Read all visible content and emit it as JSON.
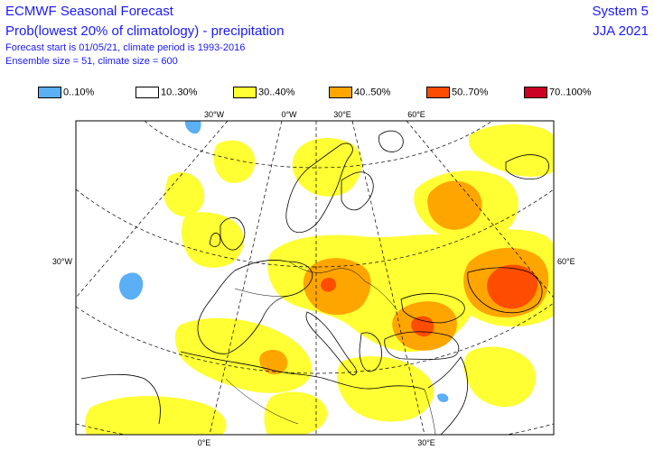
{
  "header": {
    "title": "ECMWF Seasonal Forecast",
    "subtitle": "Prob(lowest 20% of climatology) - precipitation",
    "forecast_info": "Forecast start is 01/05/21, climate period is 1993-2016",
    "ensemble_info": "Ensemble size = 51, climate size = 600",
    "system": "System 5",
    "period": "JJA 2021"
  },
  "legend": [
    {
      "label": "0..10%",
      "color": "#5aaff5"
    },
    {
      "label": "10..30%",
      "color": "#ffffff"
    },
    {
      "label": "30..40%",
      "color": "#ffff33"
    },
    {
      "label": "40..50%",
      "color": "#ffa500"
    },
    {
      "label": "50..70%",
      "color": "#ff4d00"
    },
    {
      "label": "70..100%",
      "color": "#cc0022"
    }
  ],
  "map": {
    "top_labels": [
      "30°W",
      "0°W",
      "30°E",
      "60°E"
    ],
    "left_label": "30°W",
    "right_label": "60°E",
    "bottom_labels": [
      "0°E",
      "30°E"
    ]
  }
}
